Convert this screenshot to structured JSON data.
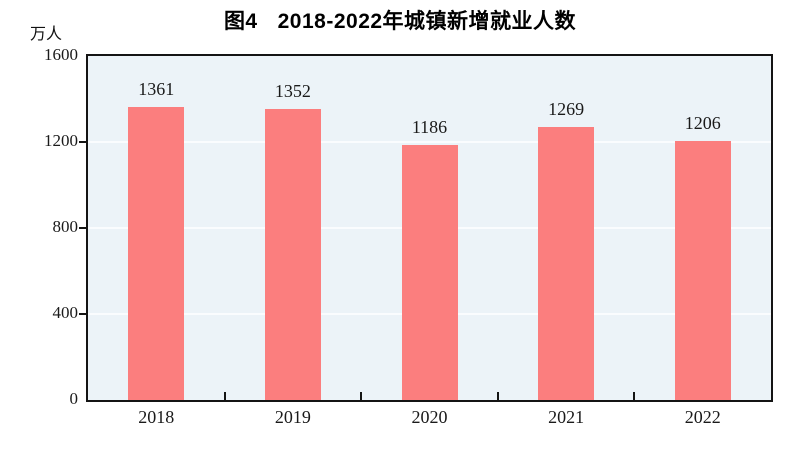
{
  "title": {
    "prefix": "图4",
    "text": "2018-2022年城镇新增就业人数"
  },
  "colors": {
    "bar": "#fb7e7e",
    "plot_bg": "#ecf3f8",
    "grid": "#fafcfe",
    "axis": "#141414",
    "text": "#1a1a1a"
  },
  "chart_data": {
    "type": "bar",
    "title": "图4 2018-2022年城镇新增就业人数",
    "categories": [
      "2018",
      "2019",
      "2020",
      "2021",
      "2022"
    ],
    "values": [
      1361,
      1352,
      1186,
      1269,
      1206
    ],
    "xlabel": "",
    "ylabel": "万人",
    "ylim": [
      0,
      1600
    ],
    "yticks": [
      0,
      400,
      800,
      1200,
      1600
    ],
    "grid": "horizontal white gridlines at 400/800/1200, plot panel framed in black",
    "legend": "none",
    "data_labels_shown": true
  }
}
